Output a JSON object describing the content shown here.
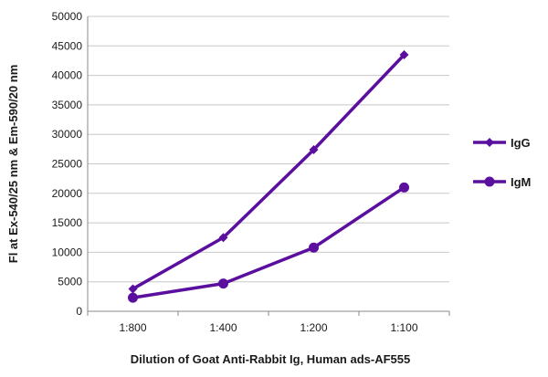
{
  "chart_data": {
    "type": "line",
    "categories": [
      "1:800",
      "1:400",
      "1:200",
      "1:100"
    ],
    "series": [
      {
        "name": "IgG",
        "values": [
          3800,
          12500,
          27400,
          43500
        ],
        "marker": "diamond",
        "color": "#5b0f9e"
      },
      {
        "name": "IgM",
        "values": [
          2300,
          4700,
          10800,
          21000
        ],
        "marker": "circle",
        "color": "#5b0f9e"
      }
    ],
    "title": "",
    "xlabel": "Dilution of Goat Anti-Rabbit Ig, Human ads-AF555",
    "ylabel": "Fl at Ex-540/25 nm & Em-590/20 nm",
    "ylim": [
      0,
      50000
    ],
    "yticks": [
      0,
      5000,
      10000,
      15000,
      20000,
      25000,
      30000,
      35000,
      40000,
      45000,
      50000
    ],
    "grid": true,
    "legend_position": "right"
  }
}
